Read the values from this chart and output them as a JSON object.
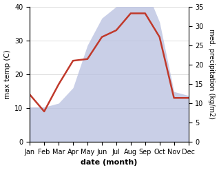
{
  "months": [
    "Jan",
    "Feb",
    "Mar",
    "Apr",
    "May",
    "Jun",
    "Jul",
    "Aug",
    "Sep",
    "Oct",
    "Nov",
    "Dec"
  ],
  "temperature": [
    14,
    9,
    17,
    24,
    24.5,
    31,
    33,
    38,
    38,
    31,
    13,
    13
  ],
  "precipitation_mm": [
    9,
    9,
    10,
    14,
    25,
    32,
    35,
    40,
    40,
    31,
    13,
    12
  ],
  "temp_color": "#c0392b",
  "precip_fill_color": "#b8c0e0",
  "temp_ylim": [
    0,
    40
  ],
  "precip_ylim": [
    0,
    35
  ],
  "temp_yticks": [
    0,
    10,
    20,
    30,
    40
  ],
  "precip_yticks": [
    0,
    5,
    10,
    15,
    20,
    25,
    30,
    35
  ],
  "ylabel_left": "max temp (C)",
  "ylabel_right": "med. precipitation (kg/m2)",
  "xlabel": "date (month)",
  "background_color": "#ffffff",
  "grid_color": "#d0d0d0",
  "linewidth": 1.8
}
